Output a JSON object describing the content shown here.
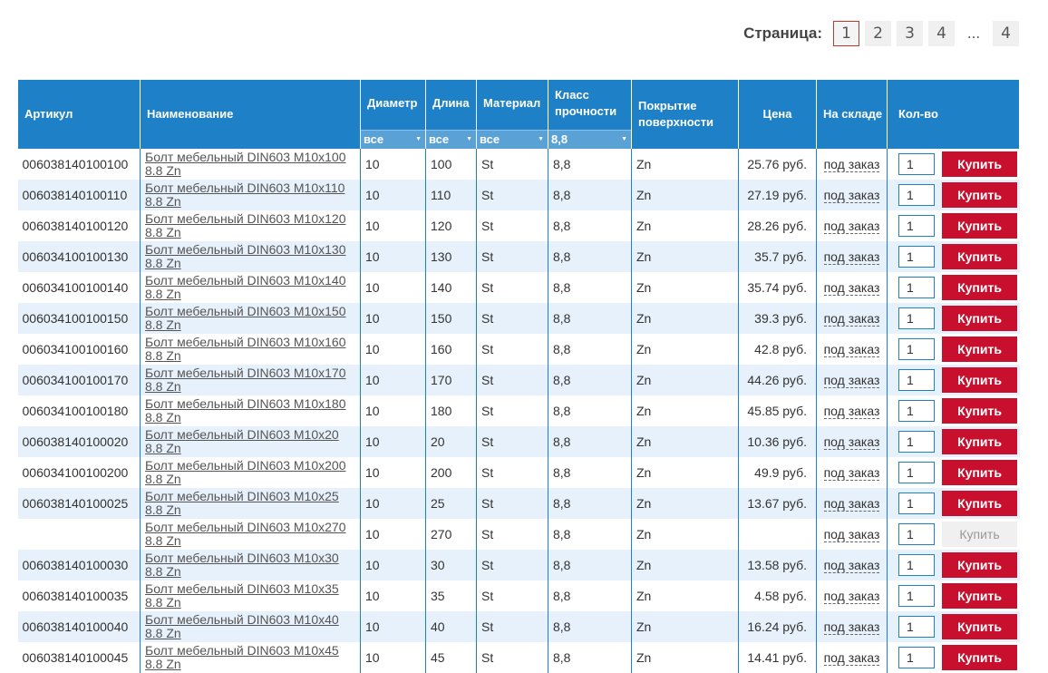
{
  "pagination": {
    "label": "Страница:",
    "pages": [
      "1",
      "2",
      "3",
      "4"
    ],
    "ellipsis": "...",
    "last": "4",
    "current": "1"
  },
  "table": {
    "headers": {
      "article": "Артикул",
      "name": "Наименование",
      "diameter": "Диаметр",
      "length": "Длина",
      "material": "Материал",
      "strength_class": "Класс прочности",
      "coating": "Покрытие поверхности",
      "price": "Цена",
      "stock": "На складе",
      "qty": "Кол-во"
    },
    "filters": {
      "diameter": "все",
      "length": "все",
      "material": "все",
      "strength_class": "8,8"
    },
    "buy_label": "Купить",
    "rows": [
      {
        "article": "006038140100100",
        "name": "Болт мебельный DIN603 M10x100 8.8 Zn",
        "diameter": "10",
        "length": "100",
        "material": "St",
        "class": "8,8",
        "coating": "Zn",
        "price": "25.76 руб.",
        "stock": "под заказ",
        "qty": "1",
        "buy_enabled": true
      },
      {
        "article": "006038140100110",
        "name": "Болт мебельный DIN603 M10x110 8.8 Zn",
        "diameter": "10",
        "length": "110",
        "material": "St",
        "class": "8,8",
        "coating": "Zn",
        "price": "27.19 руб.",
        "stock": "под заказ",
        "qty": "1",
        "buy_enabled": true
      },
      {
        "article": "006038140100120",
        "name": "Болт мебельный DIN603 M10x120 8.8 Zn",
        "diameter": "10",
        "length": "120",
        "material": "St",
        "class": "8,8",
        "coating": "Zn",
        "price": "28.26 руб.",
        "stock": "под заказ",
        "qty": "1",
        "buy_enabled": true
      },
      {
        "article": "006034100100130",
        "name": "Болт мебельный DIN603 M10x130 8.8 Zn",
        "diameter": "10",
        "length": "130",
        "material": "St",
        "class": "8,8",
        "coating": "Zn",
        "price": "35.7 руб.",
        "stock": "под заказ",
        "qty": "1",
        "buy_enabled": true
      },
      {
        "article": "006034100100140",
        "name": "Болт мебельный DIN603 M10x140 8.8 Zn",
        "diameter": "10",
        "length": "140",
        "material": "St",
        "class": "8,8",
        "coating": "Zn",
        "price": "35.74 руб.",
        "stock": "под заказ",
        "qty": "1",
        "buy_enabled": true
      },
      {
        "article": "006034100100150",
        "name": "Болт мебельный DIN603 M10x150 8.8 Zn",
        "diameter": "10",
        "length": "150",
        "material": "St",
        "class": "8,8",
        "coating": "Zn",
        "price": "39.3 руб.",
        "stock": "под заказ",
        "qty": "1",
        "buy_enabled": true
      },
      {
        "article": "006034100100160",
        "name": "Болт мебельный DIN603 M10x160 8.8 Zn",
        "diameter": "10",
        "length": "160",
        "material": "St",
        "class": "8,8",
        "coating": "Zn",
        "price": "42.8 руб.",
        "stock": "под заказ",
        "qty": "1",
        "buy_enabled": true
      },
      {
        "article": "006034100100170",
        "name": "Болт мебельный DIN603 M10x170 8.8 Zn",
        "diameter": "10",
        "length": "170",
        "material": "St",
        "class": "8,8",
        "coating": "Zn",
        "price": "44.26 руб.",
        "stock": "под заказ",
        "qty": "1",
        "buy_enabled": true
      },
      {
        "article": "006034100100180",
        "name": "Болт мебельный DIN603 M10x180 8.8 Zn",
        "diameter": "10",
        "length": "180",
        "material": "St",
        "class": "8,8",
        "coating": "Zn",
        "price": "45.85 руб.",
        "stock": "под заказ",
        "qty": "1",
        "buy_enabled": true
      },
      {
        "article": "006038140100020",
        "name": "Болт мебельный DIN603 M10x20 8.8 Zn",
        "diameter": "10",
        "length": "20",
        "material": "St",
        "class": "8,8",
        "coating": "Zn",
        "price": "10.36 руб.",
        "stock": "под заказ",
        "qty": "1",
        "buy_enabled": true
      },
      {
        "article": "006034100100200",
        "name": "Болт мебельный DIN603 M10x200 8.8 Zn",
        "diameter": "10",
        "length": "200",
        "material": "St",
        "class": "8,8",
        "coating": "Zn",
        "price": "49.9 руб.",
        "stock": "под заказ",
        "qty": "1",
        "buy_enabled": true
      },
      {
        "article": "006038140100025",
        "name": "Болт мебельный DIN603 M10x25 8.8 Zn",
        "diameter": "10",
        "length": "25",
        "material": "St",
        "class": "8,8",
        "coating": "Zn",
        "price": "13.67 руб.",
        "stock": "под заказ",
        "qty": "1",
        "buy_enabled": true
      },
      {
        "article": "",
        "name": "Болт мебельный DIN603 M10x270 8.8 Zn",
        "diameter": "10",
        "length": "270",
        "material": "St",
        "class": "8,8",
        "coating": "Zn",
        "price": "",
        "stock": "под заказ",
        "qty": "1",
        "buy_enabled": false
      },
      {
        "article": "006038140100030",
        "name": "Болт мебельный DIN603 M10x30 8.8 Zn",
        "diameter": "10",
        "length": "30",
        "material": "St",
        "class": "8,8",
        "coating": "Zn",
        "price": "13.58 руб.",
        "stock": "под заказ",
        "qty": "1",
        "buy_enabled": true
      },
      {
        "article": "006038140100035",
        "name": "Болт мебельный DIN603 M10x35 8.8 Zn",
        "diameter": "10",
        "length": "35",
        "material": "St",
        "class": "8,8",
        "coating": "Zn",
        "price": "4.58 руб.",
        "stock": "под заказ",
        "qty": "1",
        "buy_enabled": true
      },
      {
        "article": "006038140100040",
        "name": "Болт мебельный DIN603 M10x40 8.8 Zn",
        "diameter": "10",
        "length": "40",
        "material": "St",
        "class": "8,8",
        "coating": "Zn",
        "price": "16.24 руб.",
        "stock": "под заказ",
        "qty": "1",
        "buy_enabled": true
      },
      {
        "article": "006038140100045",
        "name": "Болт мебельный DIN603 M10x45 8.8 Zn",
        "diameter": "10",
        "length": "45",
        "material": "St",
        "class": "8,8",
        "coating": "Zn",
        "price": "14.41 руб.",
        "stock": "под заказ",
        "qty": "1",
        "buy_enabled": true
      }
    ]
  },
  "colors": {
    "header_bg": "#1e80c6",
    "filter_bg": "#5aa2d6",
    "buy_button": "#c8102e",
    "row_alt": "#e7f1fb",
    "current_page_border": "#c0392b"
  }
}
